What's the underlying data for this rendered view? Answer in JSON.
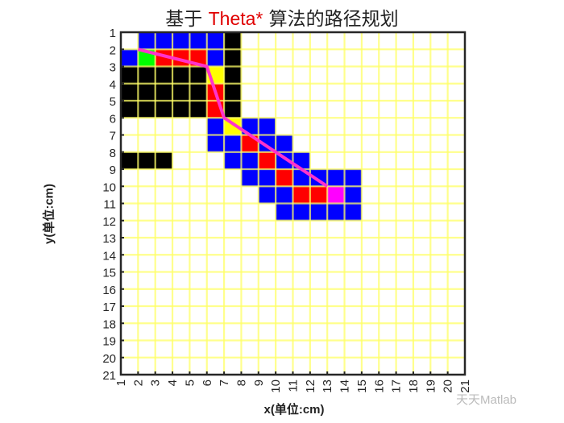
{
  "title": {
    "prefix": "基于 ",
    "accent": "Theta*",
    "suffix": " 算法的路径规划"
  },
  "xlabel": "x(单位:cm)",
  "ylabel": "y(单位:cm)",
  "watermark": "天天Matlab",
  "colors": {
    "grid": "#ffff66",
    "obstacle": "#000000",
    "open": "#0000ff",
    "closed": "#ff0000",
    "start": "#00ff00",
    "goal": "#ff00ff",
    "cut": "#ffff00",
    "path": "#ff33cc"
  },
  "chart_data": {
    "type": "heatmap",
    "title": "基于 Theta* 算法的路径规划",
    "xlabel": "x(单位:cm)",
    "ylabel": "y(单位:cm)",
    "xlim": [
      1,
      21
    ],
    "ylim": [
      1,
      21
    ],
    "xticks": [
      1,
      2,
      3,
      4,
      5,
      6,
      7,
      8,
      9,
      10,
      11,
      12,
      13,
      14,
      15,
      16,
      17,
      18,
      19,
      20,
      21
    ],
    "yticks": [
      1,
      2,
      3,
      4,
      5,
      6,
      7,
      8,
      9,
      10,
      11,
      12,
      13,
      14,
      15,
      16,
      17,
      18,
      19,
      20,
      21
    ],
    "grid": true,
    "cells": [
      {
        "x": 2,
        "y": 1,
        "t": "open"
      },
      {
        "x": 3,
        "y": 1,
        "t": "open"
      },
      {
        "x": 4,
        "y": 1,
        "t": "open"
      },
      {
        "x": 5,
        "y": 1,
        "t": "open"
      },
      {
        "x": 6,
        "y": 1,
        "t": "open"
      },
      {
        "x": 7,
        "y": 1,
        "t": "obstacle"
      },
      {
        "x": 1,
        "y": 2,
        "t": "open"
      },
      {
        "x": 2,
        "y": 2,
        "t": "start"
      },
      {
        "x": 3,
        "y": 2,
        "t": "closed"
      },
      {
        "x": 4,
        "y": 2,
        "t": "closed"
      },
      {
        "x": 5,
        "y": 2,
        "t": "closed"
      },
      {
        "x": 6,
        "y": 2,
        "t": "open"
      },
      {
        "x": 7,
        "y": 2,
        "t": "obstacle"
      },
      {
        "x": 1,
        "y": 3,
        "t": "obstacle"
      },
      {
        "x": 2,
        "y": 3,
        "t": "obstacle"
      },
      {
        "x": 3,
        "y": 3,
        "t": "obstacle"
      },
      {
        "x": 4,
        "y": 3,
        "t": "obstacle"
      },
      {
        "x": 5,
        "y": 3,
        "t": "obstacle"
      },
      {
        "x": 6,
        "y": 3,
        "t": "cut"
      },
      {
        "x": 7,
        "y": 3,
        "t": "obstacle"
      },
      {
        "x": 1,
        "y": 4,
        "t": "obstacle"
      },
      {
        "x": 2,
        "y": 4,
        "t": "obstacle"
      },
      {
        "x": 3,
        "y": 4,
        "t": "obstacle"
      },
      {
        "x": 4,
        "y": 4,
        "t": "obstacle"
      },
      {
        "x": 5,
        "y": 4,
        "t": "obstacle"
      },
      {
        "x": 6,
        "y": 4,
        "t": "closed"
      },
      {
        "x": 7,
        "y": 4,
        "t": "obstacle"
      },
      {
        "x": 1,
        "y": 5,
        "t": "obstacle"
      },
      {
        "x": 2,
        "y": 5,
        "t": "obstacle"
      },
      {
        "x": 3,
        "y": 5,
        "t": "obstacle"
      },
      {
        "x": 4,
        "y": 5,
        "t": "obstacle"
      },
      {
        "x": 5,
        "y": 5,
        "t": "obstacle"
      },
      {
        "x": 6,
        "y": 5,
        "t": "closed"
      },
      {
        "x": 7,
        "y": 5,
        "t": "obstacle"
      },
      {
        "x": 6,
        "y": 6,
        "t": "open"
      },
      {
        "x": 7,
        "y": 6,
        "t": "cut"
      },
      {
        "x": 8,
        "y": 6,
        "t": "open"
      },
      {
        "x": 9,
        "y": 6,
        "t": "open"
      },
      {
        "x": 6,
        "y": 7,
        "t": "open"
      },
      {
        "x": 7,
        "y": 7,
        "t": "open"
      },
      {
        "x": 8,
        "y": 7,
        "t": "closed"
      },
      {
        "x": 9,
        "y": 7,
        "t": "open"
      },
      {
        "x": 10,
        "y": 7,
        "t": "open"
      },
      {
        "x": 7,
        "y": 8,
        "t": "open"
      },
      {
        "x": 8,
        "y": 8,
        "t": "open"
      },
      {
        "x": 9,
        "y": 8,
        "t": "closed"
      },
      {
        "x": 10,
        "y": 8,
        "t": "open"
      },
      {
        "x": 11,
        "y": 8,
        "t": "open"
      },
      {
        "x": 1,
        "y": 8,
        "t": "obstacle"
      },
      {
        "x": 2,
        "y": 8,
        "t": "obstacle"
      },
      {
        "x": 3,
        "y": 8,
        "t": "obstacle"
      },
      {
        "x": 8,
        "y": 9,
        "t": "open"
      },
      {
        "x": 9,
        "y": 9,
        "t": "open"
      },
      {
        "x": 10,
        "y": 9,
        "t": "closed"
      },
      {
        "x": 11,
        "y": 9,
        "t": "open"
      },
      {
        "x": 12,
        "y": 9,
        "t": "open"
      },
      {
        "x": 13,
        "y": 9,
        "t": "open"
      },
      {
        "x": 14,
        "y": 9,
        "t": "open"
      },
      {
        "x": 9,
        "y": 10,
        "t": "open"
      },
      {
        "x": 10,
        "y": 10,
        "t": "open"
      },
      {
        "x": 11,
        "y": 10,
        "t": "closed"
      },
      {
        "x": 12,
        "y": 10,
        "t": "closed"
      },
      {
        "x": 13,
        "y": 10,
        "t": "goal"
      },
      {
        "x": 14,
        "y": 10,
        "t": "open"
      },
      {
        "x": 10,
        "y": 11,
        "t": "open"
      },
      {
        "x": 11,
        "y": 11,
        "t": "open"
      },
      {
        "x": 12,
        "y": 11,
        "t": "open"
      },
      {
        "x": 13,
        "y": 11,
        "t": "open"
      },
      {
        "x": 14,
        "y": 11,
        "t": "open"
      }
    ],
    "path": [
      [
        2,
        2
      ],
      [
        6,
        3
      ],
      [
        7,
        6
      ],
      [
        13,
        10
      ]
    ]
  }
}
